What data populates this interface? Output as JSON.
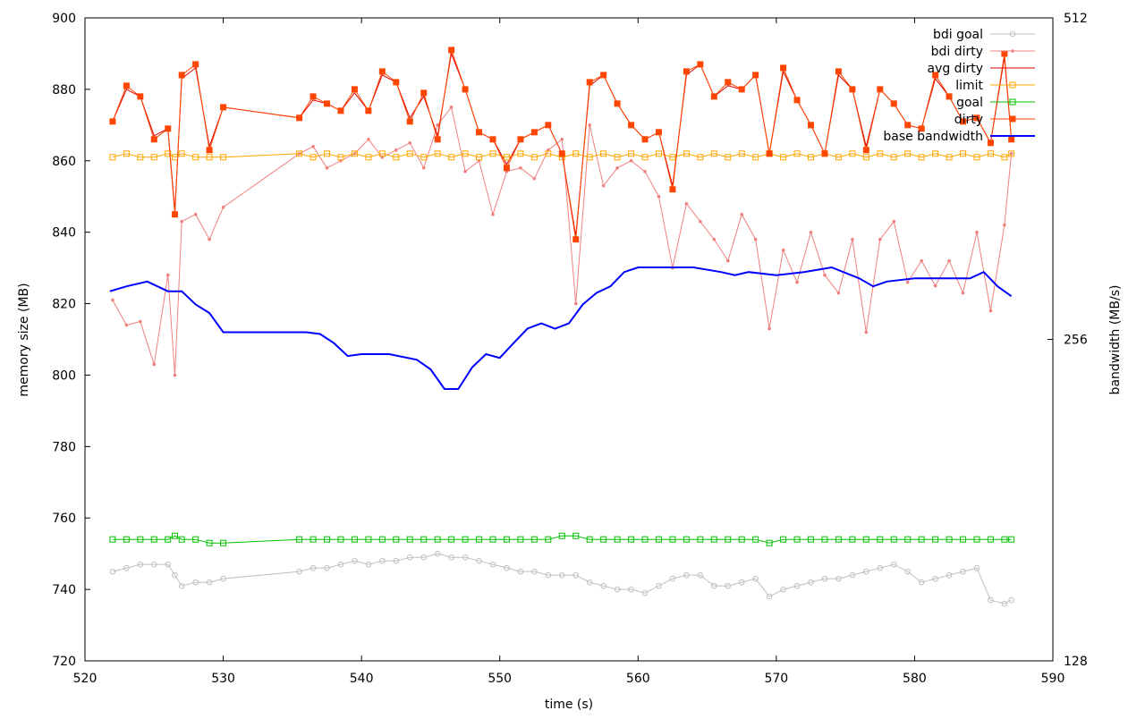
{
  "chart_data": {
    "type": "line",
    "xlabel": "time (s)",
    "ylabel": "memory size (MB)",
    "y2label": "bandwidth (MB/s)",
    "xlim": [
      520,
      590
    ],
    "xticks": [
      520,
      530,
      540,
      550,
      560,
      570,
      580,
      590
    ],
    "ylim": [
      720,
      900
    ],
    "yticks": [
      720,
      740,
      760,
      780,
      800,
      820,
      840,
      860,
      880,
      900
    ],
    "y2lim": [
      128,
      512
    ],
    "y2ticks": [
      128,
      256,
      512
    ],
    "y2scale": "log",
    "legend": "top-right",
    "x": [
      522,
      523,
      524,
      525,
      526,
      526.5,
      527,
      528,
      529,
      530,
      535.5,
      536.5,
      537.5,
      538.5,
      539.5,
      540.5,
      541.5,
      542.5,
      543.5,
      544.5,
      545.5,
      546.5,
      547.5,
      548.5,
      549.5,
      550.5,
      551.5,
      552.5,
      553.5,
      554.5,
      555.5,
      556.5,
      557.5,
      558.5,
      559.5,
      560.5,
      561.5,
      562.5,
      563.5,
      564.5,
      565.5,
      566.5,
      567.5,
      568.5,
      569.5,
      570.5,
      571.5,
      572.5,
      573.5,
      574.5,
      575.5,
      576.5,
      577.5,
      578.5,
      579.5,
      580.5,
      581.5,
      582.5,
      583.5,
      584.5,
      585.5,
      586.5,
      587
    ],
    "series": [
      {
        "name": "bdi goal",
        "color": "#c0c0c0",
        "marker": "circle",
        "values": [
          745,
          746,
          747,
          747,
          747,
          744,
          741,
          742,
          742,
          743,
          745,
          746,
          746,
          747,
          748,
          747,
          748,
          748,
          749,
          749,
          750,
          749,
          749,
          748,
          747,
          746,
          745,
          745,
          744,
          744,
          744,
          742,
          741,
          740,
          740,
          739,
          741,
          743,
          744,
          744,
          741,
          741,
          742,
          743,
          738,
          740,
          741,
          742,
          743,
          743,
          744,
          745,
          746,
          747,
          745,
          742,
          743,
          744,
          745,
          746,
          737,
          736,
          737
        ]
      },
      {
        "name": "bdi dirty",
        "color": "#f08080",
        "marker": "dot",
        "values": [
          821,
          814,
          815,
          803,
          828,
          800,
          843,
          845,
          838,
          847,
          862,
          864,
          858,
          860,
          862,
          866,
          861,
          863,
          865,
          858,
          870,
          875,
          857,
          860,
          845,
          857,
          858,
          855,
          863,
          866,
          820,
          870,
          853,
          858,
          860,
          857,
          850,
          830,
          848,
          843,
          838,
          832,
          845,
          838,
          813,
          835,
          826,
          840,
          828,
          823,
          838,
          812,
          838,
          843,
          826,
          832,
          825,
          832,
          823,
          840,
          818,
          842,
          862
        ]
      },
      {
        "name": "avg dirty",
        "color": "#e00000",
        "marker": "none",
        "values": [
          871,
          880,
          878,
          867,
          869,
          846,
          883,
          886,
          864,
          875,
          872,
          877,
          876,
          874,
          879,
          874,
          884,
          882,
          872,
          878,
          867,
          890,
          880,
          868,
          866,
          859,
          866,
          868,
          870,
          862,
          839,
          881,
          884,
          876,
          870,
          866,
          868,
          853,
          884,
          887,
          878,
          881,
          880,
          884,
          862,
          885,
          877,
          870,
          862,
          884,
          880,
          864,
          880,
          876,
          870,
          869,
          883,
          878,
          871,
          872,
          865,
          889,
          866
        ]
      },
      {
        "name": "limit",
        "color": "#ffa500",
        "marker": "square",
        "values": [
          861,
          862,
          861,
          861,
          862,
          861,
          862,
          861,
          861,
          861,
          862,
          861,
          862,
          861,
          862,
          861,
          862,
          861,
          862,
          861,
          862,
          861,
          862,
          861,
          862,
          861,
          862,
          861,
          862,
          861,
          862,
          861,
          862,
          861,
          862,
          861,
          862,
          861,
          862,
          861,
          862,
          861,
          862,
          861,
          862,
          861,
          862,
          861,
          862,
          861,
          862,
          861,
          862,
          861,
          862,
          861,
          862,
          861,
          862,
          861,
          862,
          861,
          862
        ]
      },
      {
        "name": "goal",
        "color": "#00c000",
        "marker": "square",
        "values": [
          754,
          754,
          754,
          754,
          754,
          755,
          754,
          754,
          753,
          753,
          754,
          754,
          754,
          754,
          754,
          754,
          754,
          754,
          754,
          754,
          754,
          754,
          754,
          754,
          754,
          754,
          754,
          754,
          754,
          755,
          755,
          754,
          754,
          754,
          754,
          754,
          754,
          754,
          754,
          754,
          754,
          754,
          754,
          754,
          753,
          754,
          754,
          754,
          754,
          754,
          754,
          754,
          754,
          754,
          754,
          754,
          754,
          754,
          754,
          754,
          754,
          754,
          754
        ]
      },
      {
        "name": "dirty",
        "color": "#ff4500",
        "marker": "filled-square",
        "values": [
          871,
          881,
          878,
          866,
          869,
          845,
          884,
          887,
          863,
          875,
          872,
          878,
          876,
          874,
          880,
          874,
          885,
          882,
          871,
          879,
          866,
          891,
          880,
          868,
          866,
          858,
          866,
          868,
          870,
          862,
          838,
          882,
          884,
          876,
          870,
          866,
          868,
          852,
          885,
          887,
          878,
          882,
          880,
          884,
          862,
          886,
          877,
          870,
          862,
          885,
          880,
          863,
          880,
          876,
          870,
          869,
          884,
          878,
          871,
          872,
          865,
          890,
          866
        ]
      },
      {
        "name": "base bandwidth",
        "color": "#0000ff",
        "marker": "none",
        "axis": "y2",
        "x": [
          521.8,
          523,
          524.5,
          526,
          527,
          528,
          529,
          530,
          531,
          535.5,
          536,
          537,
          538,
          539,
          540,
          542,
          544,
          545,
          546,
          547,
          548,
          549,
          550,
          551,
          552,
          553,
          554,
          555,
          556,
          557,
          558,
          559,
          560,
          562,
          564,
          566,
          567,
          568,
          570,
          572,
          574,
          576,
          577,
          578,
          580,
          582,
          584,
          585,
          586,
          587
        ],
        "values": [
          284,
          287,
          290,
          284,
          284,
          276,
          271,
          260,
          260,
          260,
          260,
          259,
          254,
          247,
          248,
          248,
          245,
          240,
          230,
          230,
          241,
          248,
          246,
          254,
          262,
          265,
          262,
          265,
          276,
          283,
          287,
          296,
          299,
          299,
          299,
          296,
          294,
          296,
          294,
          296,
          299,
          292,
          287,
          290,
          292,
          292,
          292,
          296,
          287,
          281
        ]
      }
    ]
  }
}
